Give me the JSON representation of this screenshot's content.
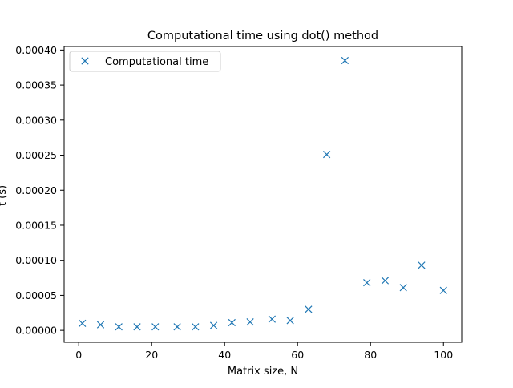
{
  "chart_data": {
    "type": "scatter",
    "title": "Computational time using dot() method",
    "xlabel": "Matrix size, N",
    "ylabel": "t (s)",
    "xlim": [
      -4,
      105
    ],
    "ylim": [
      -1.7e-05,
      0.000405
    ],
    "xticks": [
      0,
      20,
      40,
      60,
      80,
      100
    ],
    "yticks": [
      0.0,
      5e-05,
      0.0001,
      0.00015,
      0.0002,
      0.00025,
      0.0003,
      0.00035,
      0.0004
    ],
    "xtick_labels": [
      "0",
      "20",
      "40",
      "60",
      "80",
      "100"
    ],
    "ytick_labels": [
      "0.00000",
      "0.00005",
      "0.00010",
      "0.00015",
      "0.00020",
      "0.00025",
      "0.00030",
      "0.00035",
      "0.00040"
    ],
    "grid": false,
    "legend_position": "top-left",
    "marker": "x",
    "series": [
      {
        "name": "Computational time",
        "color": "#1f77b4",
        "x": [
          1,
          6,
          11,
          16,
          21,
          27,
          32,
          37,
          42,
          47,
          53,
          58,
          63,
          68,
          73,
          79,
          84,
          89,
          94,
          100
        ],
        "y": [
          1e-05,
          8e-06,
          5e-06,
          5e-06,
          5e-06,
          5e-06,
          5e-06,
          7e-06,
          1.1e-05,
          1.2e-05,
          1.6e-05,
          1.4e-05,
          3e-05,
          0.000251,
          0.000385,
          6.8e-05,
          7.1e-05,
          6.1e-05,
          9.3e-05,
          5.7e-05
        ]
      }
    ]
  }
}
